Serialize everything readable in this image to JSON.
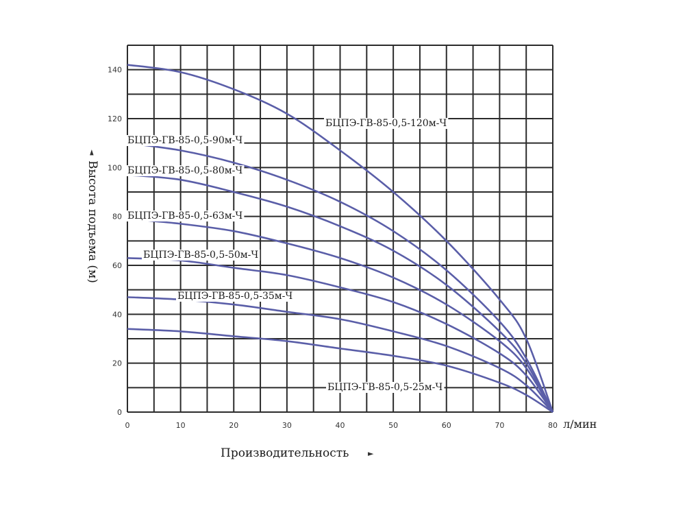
{
  "chart_data": {
    "type": "line",
    "xlabel": "Производительность",
    "ylabel": "Высота подъема (м)",
    "x_unit": "л/мин",
    "xlim": [
      0,
      80
    ],
    "ylim": [
      0,
      150
    ],
    "x_ticks": [
      0,
      10,
      20,
      30,
      40,
      50,
      60,
      70,
      80
    ],
    "y_ticks": [
      0,
      20,
      40,
      60,
      80,
      100,
      120,
      140
    ],
    "grid": true,
    "line_color": "#5a5ea8",
    "series": [
      {
        "name": "БЦПЭ-ГВ-85-0,5-120м-Ч",
        "x": [
          0,
          10,
          20,
          30,
          40,
          50,
          60,
          70,
          75,
          80
        ],
        "y": [
          142,
          139,
          132,
          122,
          107,
          90,
          70,
          46,
          30,
          0
        ]
      },
      {
        "name": "БЦПЭ-ГВ-85-0,5-90м-Ч",
        "x": [
          0,
          10,
          20,
          30,
          40,
          50,
          60,
          70,
          75,
          80
        ],
        "y": [
          110,
          107,
          102,
          95,
          86,
          74,
          58,
          37,
          22,
          0
        ]
      },
      {
        "name": "БЦПЭ-ГВ-85-0,5-80м-Ч",
        "x": [
          0,
          10,
          20,
          30,
          40,
          50,
          60,
          70,
          75,
          80
        ],
        "y": [
          97,
          95,
          90,
          84,
          76,
          66,
          52,
          33,
          20,
          0
        ]
      },
      {
        "name": "БЦПЭ-ГВ-85-0,5-63м-Ч",
        "x": [
          0,
          10,
          20,
          30,
          40,
          50,
          60,
          70,
          75,
          80
        ],
        "y": [
          79,
          77,
          74,
          69,
          63,
          55,
          44,
          29,
          18,
          0
        ]
      },
      {
        "name": "БЦПЭ-ГВ-85-0,5-50м-Ч",
        "x": [
          0,
          10,
          20,
          30,
          40,
          50,
          60,
          70,
          75,
          80
        ],
        "y": [
          63,
          62,
          59,
          56,
          51,
          45,
          36,
          24,
          15,
          0
        ]
      },
      {
        "name": "БЦПЭ-ГВ-85-0,5-35м-Ч",
        "x": [
          0,
          10,
          20,
          30,
          40,
          50,
          60,
          70,
          75,
          80
        ],
        "y": [
          47,
          46,
          44,
          41,
          38,
          33,
          27,
          18,
          11,
          0
        ]
      },
      {
        "name": "БЦПЭ-ГВ-85-0,5-25м-Ч",
        "x": [
          0,
          10,
          20,
          30,
          40,
          50,
          60,
          70,
          75,
          80
        ],
        "y": [
          34,
          33,
          31,
          29,
          26,
          23,
          19,
          12,
          7,
          0
        ]
      }
    ]
  }
}
